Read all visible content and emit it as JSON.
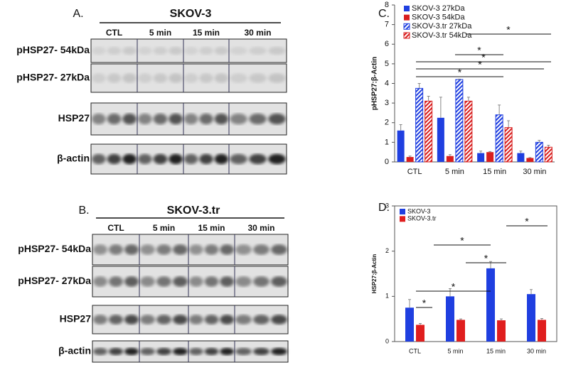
{
  "blots": [
    {
      "panel": "A.",
      "title": "SKOV-3",
      "lanes": [
        "CTL",
        "5 min",
        "15 min",
        "30 min"
      ],
      "rows": [
        "pHSP27- 54kDa",
        "pHSP27- 27kDa",
        "HSP27",
        "β-actin"
      ]
    },
    {
      "panel": "B.",
      "title": "SKOV-3.tr",
      "lanes": [
        "CTL",
        "5 min",
        "15 min",
        "30 min"
      ],
      "rows": [
        "pHSP27- 54kDa",
        "pHSP27- 27kDa",
        "HSP27",
        "β-actin"
      ]
    }
  ],
  "chart_data": [
    {
      "type": "bar",
      "panel": "C.",
      "ylabel": "pHSP27:β-Actin",
      "categories": [
        "CTL",
        "5 min",
        "15 min",
        "30 min"
      ],
      "ylim": [
        0,
        8
      ],
      "yticks": [
        0,
        1,
        2,
        3,
        4,
        5,
        6,
        7,
        8
      ],
      "series": [
        {
          "name": "SKOV-3 27kDa",
          "color": "#1f3fe0",
          "hatch": false,
          "values": [
            1.6,
            2.25,
            0.45,
            0.45
          ],
          "errors": [
            0.3,
            1.05,
            0.1,
            0.1
          ]
        },
        {
          "name": "SKOV-3 54kDa",
          "color": "#d81e1e",
          "hatch": false,
          "values": [
            0.25,
            0.3,
            0.5,
            0.2
          ],
          "errors": [
            0.05,
            0.07,
            0.03,
            0.02
          ]
        },
        {
          "name": "SKOV-3.tr 27kDa",
          "color": "#1f3fe0",
          "hatch": true,
          "values": [
            3.75,
            4.2,
            2.4,
            1.0
          ],
          "errors": [
            0.25,
            0.02,
            0.5,
            0.1
          ]
        },
        {
          "name": "SKOV-3.tr 54kDa",
          "color": "#d81e1e",
          "hatch": true,
          "values": [
            3.1,
            3.1,
            1.75,
            0.75
          ],
          "errors": [
            0.25,
            0.2,
            0.35,
            0.1
          ]
        }
      ],
      "annotations": [
        "*",
        "*",
        "*",
        "*",
        "*"
      ]
    },
    {
      "type": "bar",
      "panel": "D.",
      "ylabel": "HSP27:β-Actin",
      "categories": [
        "CTL",
        "5 min",
        "15 min",
        "30 min"
      ],
      "ylim": [
        0,
        3
      ],
      "yticks": [
        0,
        1,
        2,
        3
      ],
      "series": [
        {
          "name": "SKOV-3",
          "color": "#1f3fe0",
          "hatch": false,
          "values": [
            0.75,
            1.0,
            1.62,
            1.05
          ],
          "errors": [
            0.18,
            0.17,
            0.15,
            0.1
          ]
        },
        {
          "name": "SKOV-3.tr",
          "color": "#e01e1e",
          "hatch": false,
          "values": [
            0.37,
            0.48,
            0.47,
            0.48
          ],
          "errors": [
            0.03,
            0.02,
            0.03,
            0.03
          ]
        }
      ],
      "annotations": [
        "*",
        "*",
        "*",
        "*",
        "*"
      ]
    }
  ]
}
